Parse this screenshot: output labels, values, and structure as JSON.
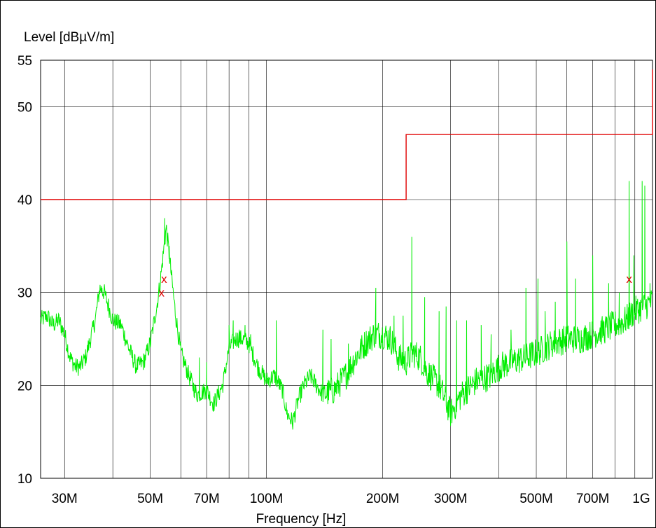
{
  "chart_data": {
    "type": "line",
    "ylabel": "Level [dBµV/m]",
    "xlabel": "Frequency [Hz]",
    "x_scale": "log",
    "xlim": [
      26000000,
      1000000000
    ],
    "ylim": [
      10,
      55
    ],
    "grid": true,
    "x_ticks": [
      {
        "value": 30000000,
        "label": "30M"
      },
      {
        "value": 50000000,
        "label": "50M"
      },
      {
        "value": 70000000,
        "label": "70M"
      },
      {
        "value": 100000000,
        "label": "100M"
      },
      {
        "value": 200000000,
        "label": "200M"
      },
      {
        "value": 300000000,
        "label": "300M"
      },
      {
        "value": 500000000,
        "label": "500M"
      },
      {
        "value": 700000000,
        "label": "700M"
      },
      {
        "value": 1000000000,
        "label": "1G"
      }
    ],
    "x_minor_gridlines": [
      40000000,
      60000000,
      80000000,
      90000000,
      400000000,
      600000000,
      800000000,
      900000000
    ],
    "y_ticks": [
      10,
      20,
      30,
      40,
      50,
      55
    ],
    "colors": {
      "limit": "#e00000",
      "trace": "#00ee00",
      "marker": "#e00000",
      "grid": "#000000"
    },
    "series": [
      {
        "style": "step",
        "color": "#e00000",
        "points": [
          [
            26000000,
            40
          ],
          [
            230000000,
            40
          ],
          [
            230000000,
            47
          ],
          [
            1000000000,
            47
          ],
          [
            1000000000,
            54
          ]
        ]
      },
      {
        "style": "line",
        "color": "#00ee00",
        "anchors": [
          [
            26000000,
            27.0
          ],
          [
            27000000,
            27.5
          ],
          [
            28000000,
            26.5
          ],
          [
            29000000,
            27.0
          ],
          [
            30000000,
            25.5
          ],
          [
            31000000,
            23.0
          ],
          [
            32000000,
            22.0
          ],
          [
            33000000,
            22.0
          ],
          [
            34000000,
            23.0
          ],
          [
            35000000,
            25.0
          ],
          [
            36000000,
            27.0
          ],
          [
            37000000,
            30.5
          ],
          [
            38000000,
            30.0
          ],
          [
            40000000,
            27.0
          ],
          [
            42000000,
            26.5
          ],
          [
            44000000,
            24.0
          ],
          [
            46000000,
            22.0
          ],
          [
            48000000,
            22.5
          ],
          [
            50000000,
            24.5
          ],
          [
            52000000,
            28.5
          ],
          [
            53000000,
            31.0
          ],
          [
            54000000,
            34.0
          ],
          [
            55000000,
            37.0
          ],
          [
            56000000,
            34.0
          ],
          [
            58000000,
            28.0
          ],
          [
            60000000,
            23.5
          ],
          [
            63000000,
            21.0
          ],
          [
            66000000,
            19.0
          ],
          [
            70000000,
            19.5
          ],
          [
            73000000,
            18.0
          ],
          [
            77000000,
            20.0
          ],
          [
            80000000,
            24.0
          ],
          [
            83000000,
            25.0
          ],
          [
            87000000,
            25.0
          ],
          [
            90000000,
            24.5
          ],
          [
            95000000,
            22.0
          ],
          [
            100000000,
            20.5
          ],
          [
            105000000,
            21.0
          ],
          [
            110000000,
            19.5
          ],
          [
            113000000,
            17.0
          ],
          [
            117000000,
            16.0
          ],
          [
            121000000,
            18.5
          ],
          [
            125000000,
            20.0
          ],
          [
            130000000,
            21.0
          ],
          [
            140000000,
            19.0
          ],
          [
            150000000,
            19.5
          ],
          [
            160000000,
            21.0
          ],
          [
            170000000,
            23.0
          ],
          [
            180000000,
            24.5
          ],
          [
            190000000,
            25.5
          ],
          [
            200000000,
            25.5
          ],
          [
            210000000,
            25.0
          ],
          [
            220000000,
            23.0
          ],
          [
            230000000,
            22.5
          ],
          [
            240000000,
            23.5
          ],
          [
            250000000,
            23.0
          ],
          [
            260000000,
            21.5
          ],
          [
            280000000,
            20.0
          ],
          [
            300000000,
            17.0
          ],
          [
            320000000,
            19.0
          ],
          [
            350000000,
            20.5
          ],
          [
            380000000,
            21.0
          ],
          [
            400000000,
            22.0
          ],
          [
            430000000,
            22.5
          ],
          [
            470000000,
            23.0
          ],
          [
            500000000,
            23.5
          ],
          [
            550000000,
            24.5
          ],
          [
            600000000,
            25.0
          ],
          [
            650000000,
            25.0
          ],
          [
            700000000,
            25.5
          ],
          [
            750000000,
            26.0
          ],
          [
            800000000,
            26.5
          ],
          [
            850000000,
            27.0
          ],
          [
            900000000,
            28.0
          ],
          [
            950000000,
            28.5
          ],
          [
            1000000000,
            29.0
          ]
        ],
        "spikes": [
          [
            37500000,
            30.5
          ],
          [
            54500000,
            38.0
          ],
          [
            56000000,
            35.0
          ],
          [
            67000000,
            23.0
          ],
          [
            70000000,
            22.5
          ],
          [
            80000000,
            26.5
          ],
          [
            82000000,
            27.0
          ],
          [
            85000000,
            26.0
          ],
          [
            88000000,
            26.5
          ],
          [
            91000000,
            25.5
          ],
          [
            106000000,
            27.0
          ],
          [
            140000000,
            26.0
          ],
          [
            147000000,
            25.0
          ],
          [
            163000000,
            24.5
          ],
          [
            192000000,
            30.5
          ],
          [
            214000000,
            27.5
          ],
          [
            226000000,
            27.5
          ],
          [
            238000000,
            36.0
          ],
          [
            257000000,
            29.5
          ],
          [
            280000000,
            28.0
          ],
          [
            292000000,
            28.5
          ],
          [
            311000000,
            27.0
          ],
          [
            330000000,
            27.0
          ],
          [
            360000000,
            26.5
          ],
          [
            382000000,
            25.5
          ],
          [
            430000000,
            26.0
          ],
          [
            470000000,
            30.5
          ],
          [
            505000000,
            31.5
          ],
          [
            527000000,
            28.0
          ],
          [
            560000000,
            29.0
          ],
          [
            600000000,
            35.5
          ],
          [
            632000000,
            31.5
          ],
          [
            700000000,
            34.0
          ],
          [
            770000000,
            31.0
          ],
          [
            820000000,
            30.0
          ],
          [
            870000000,
            42.0
          ],
          [
            895000000,
            34.0
          ],
          [
            940000000,
            42.0
          ],
          [
            955000000,
            41.5
          ],
          [
            985000000,
            31.0
          ]
        ]
      }
    ],
    "markers": [
      {
        "x": 53500000,
        "y": 30.0,
        "symbol": "x"
      },
      {
        "x": 54300000,
        "y": 31.5,
        "symbol": "x"
      },
      {
        "x": 870000000,
        "y": 31.5,
        "symbol": "x"
      }
    ]
  }
}
